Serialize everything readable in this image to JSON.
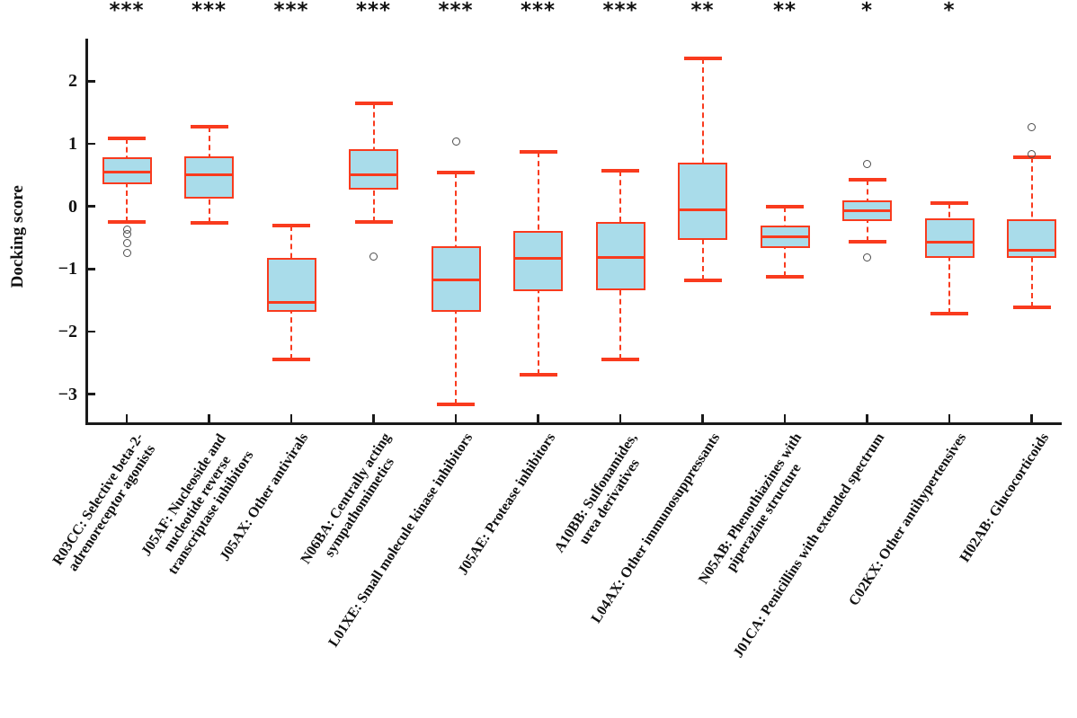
{
  "figure": {
    "background": "#ffffff"
  },
  "chart_data": {
    "type": "box",
    "title": "",
    "xlabel": "",
    "ylabel": "Docking score",
    "ylim": [
      -3.45,
      2.68
    ],
    "yticks": [
      {
        "value": 2,
        "label": "2"
      },
      {
        "value": 1,
        "label": "1"
      },
      {
        "value": 0,
        "label": "0"
      },
      {
        "value": -1,
        "label": "−1"
      },
      {
        "value": -2,
        "label": "−2"
      },
      {
        "value": -3,
        "label": "−3"
      }
    ],
    "grid": false,
    "legend": null,
    "marker": "open-circle",
    "style": {
      "box_fill": "#a9dcea",
      "box_edge": "#f93b1e",
      "whisker": "#f93b1e",
      "cap": "#f93b1e",
      "median": "#f93b1e",
      "outlier": "#4d4d4d",
      "axis": "#1a1a1a",
      "text": "#111111"
    },
    "series": [
      {
        "code": "R03CC",
        "label": "R03CC: Selective beta-2- adrenoreceptor agonists",
        "label_lines": [
          "R03CC: Selective beta-2-",
          "adrenoreceptor agonists"
        ],
        "significance": "***",
        "whisker_low": -0.25,
        "q1": 0.36,
        "median": 0.55,
        "q3": 0.79,
        "whisker_high": 1.08,
        "outliers": [
          -0.37,
          -0.44,
          -0.58,
          -0.75
        ]
      },
      {
        "code": "J05AF",
        "label": "J05AF: Nucleoside and nucleotide reverse transcriptase inhibitors",
        "label_lines": [
          "J05AF: Nucleoside and",
          "nucleotide reverse",
          "transcriptase inhibitors"
        ],
        "significance": "***",
        "whisker_low": -0.26,
        "q1": 0.13,
        "median": 0.5,
        "q3": 0.8,
        "whisker_high": 1.28,
        "outliers": []
      },
      {
        "code": "J05AX",
        "label": "J05AX: Other antivirals",
        "label_lines": [
          "J05AX: Other antivirals"
        ],
        "significance": "***",
        "whisker_low": -2.44,
        "q1": -1.69,
        "median": -1.53,
        "q3": -0.83,
        "whisker_high": -0.3,
        "outliers": []
      },
      {
        "code": "N06BA",
        "label": "N06BA: Centrally acting sympathomimetics",
        "label_lines": [
          "N06BA: Centrally acting",
          "sympathomimetics"
        ],
        "significance": "***",
        "whisker_low": -0.25,
        "q1": 0.27,
        "median": 0.5,
        "q3": 0.92,
        "whisker_high": 1.65,
        "outliers": [
          -0.8
        ]
      },
      {
        "code": "L01XE",
        "label": "L01XE: Small molecule kinase inhibitors",
        "label_lines": [
          "L01XE: Small molecule kinase inhibitors"
        ],
        "significance": "***",
        "whisker_low": -3.16,
        "q1": -1.69,
        "median": -1.18,
        "q3": -0.63,
        "whisker_high": 0.54,
        "outliers": [
          1.03
        ]
      },
      {
        "code": "J05AE",
        "label": "J05AE: Protease inhibitors",
        "label_lines": [
          "J05AE: Protease inhibitors"
        ],
        "significance": "***",
        "whisker_low": -2.69,
        "q1": -1.36,
        "median": -0.83,
        "q3": -0.39,
        "whisker_high": 0.87,
        "outliers": []
      },
      {
        "code": "A10BB",
        "label": "A10BB: Sulfonamides, urea derivatives",
        "label_lines": [
          "A10BB: Sulfonamides,",
          "urea derivatives"
        ],
        "significance": "***",
        "whisker_low": -2.44,
        "q1": -1.34,
        "median": -0.81,
        "q3": -0.25,
        "whisker_high": 0.57,
        "outliers": []
      },
      {
        "code": "L04AX",
        "label": "L04AX: Other immunosuppressants",
        "label_lines": [
          "L04AX: Other immunosuppressants"
        ],
        "significance": "**",
        "whisker_low": -1.18,
        "q1": -0.53,
        "median": -0.05,
        "q3": 0.7,
        "whisker_high": 2.37,
        "outliers": []
      },
      {
        "code": "N05AB",
        "label": "N05AB: Phenothiazines with piperazine structure",
        "label_lines": [
          "N05AB: Phenothiazines with",
          "piperazine structure"
        ],
        "significance": "**",
        "whisker_low": -1.12,
        "q1": -0.67,
        "median": -0.49,
        "q3": -0.31,
        "whisker_high": 0.0,
        "outliers": []
      },
      {
        "code": "J01CA",
        "label": "J01CA: Penicillins with extended spectrum",
        "label_lines": [
          "J01CA: Penicillins with extended spectrum"
        ],
        "significance": "*",
        "whisker_low": -0.56,
        "q1": -0.24,
        "median": -0.07,
        "q3": 0.1,
        "whisker_high": 0.43,
        "outliers": [
          0.68,
          -0.81
        ]
      },
      {
        "code": "C02KX",
        "label": "C02KX: Other antihypertensives",
        "label_lines": [
          "C02KX: Other antihypertensives"
        ],
        "significance": "*",
        "whisker_low": -1.71,
        "q1": -0.82,
        "median": -0.57,
        "q3": -0.19,
        "whisker_high": 0.05,
        "outliers": []
      },
      {
        "code": "H02AB",
        "label": "H02AB: Glucocorticoids",
        "label_lines": [
          "H02AB: Glucocorticoids"
        ],
        "significance": "",
        "whisker_low": -1.61,
        "q1": -0.83,
        "median": -0.7,
        "q3": -0.21,
        "whisker_high": 0.78,
        "outliers": [
          1.27,
          0.84
        ]
      }
    ]
  }
}
